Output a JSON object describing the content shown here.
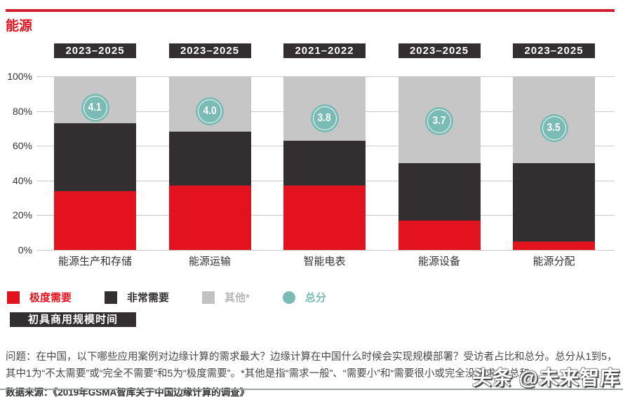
{
  "title": "能源",
  "chart_data": {
    "type": "bar",
    "stacked": true,
    "title": "能源",
    "categories": [
      "能源生产和存储",
      "能源运输",
      "智能电表",
      "能源设备",
      "能源分配"
    ],
    "timeline_badges": [
      "2023–2025",
      "2023–2025",
      "2021–2022",
      "2023–2025",
      "2023–2025"
    ],
    "series": [
      {
        "name": "极度需要",
        "color": "#E2131F",
        "values": [
          34,
          37,
          37,
          17,
          5
        ]
      },
      {
        "name": "非常需要",
        "color": "#332E2F",
        "values": [
          39,
          31,
          26,
          33,
          45
        ]
      },
      {
        "name": "其他*",
        "color": "#C6C6C6",
        "values": [
          27,
          32,
          37,
          50,
          50
        ]
      }
    ],
    "scores": {
      "name": "总分",
      "color": "#7ABBB5",
      "values": [
        "4.1",
        "4.0",
        "3.8",
        "3.7",
        "3.5"
      ],
      "scale_max": 5
    },
    "y_ticks": [
      "0%",
      "20%",
      "40%",
      "60%",
      "80%",
      "100%"
    ],
    "ylim": [
      0,
      100
    ],
    "grid": true,
    "legend_position": "bottom"
  },
  "legend": {
    "items": [
      {
        "label": "极度需要",
        "color": "#E2131F",
        "shape": "square",
        "text_color": "#E2131F"
      },
      {
        "label": "非常需要",
        "color": "#332E2F",
        "shape": "square",
        "text_color": "#332E2F"
      },
      {
        "label": "其他*",
        "color": "#C2C2C2",
        "shape": "square",
        "text_color": "#B5B5B5"
      },
      {
        "label": "总分",
        "color": "#7ABBB5",
        "shape": "circle",
        "text_color": "#7ABBB5"
      }
    ]
  },
  "scale_badge": "初具商用规模时间",
  "question": "问题：在中国，以下哪些应用案例对边缘计算的需求最大？边缘计算在中国什么时候会实现规模部署？受访者占比和总分。总分从1到5，其中1为“不太需要”或“完全不需要”和5为“极度需要”。*其他是指“需求一般”、“需要小”和“需要很小或完全没需求”的总和。",
  "source": "数据来源：《2019年GSMA智库关于中国边缘计算的调查》",
  "watermark": "头条 @未来智库",
  "colors": {
    "red": "#E2131F",
    "dark": "#332E2F",
    "gray": "#C6C6C6",
    "teal": "#7ABBB5",
    "rule_red": "#CE2030",
    "grid": "#C9C9C9",
    "axis_text": "#333333"
  }
}
